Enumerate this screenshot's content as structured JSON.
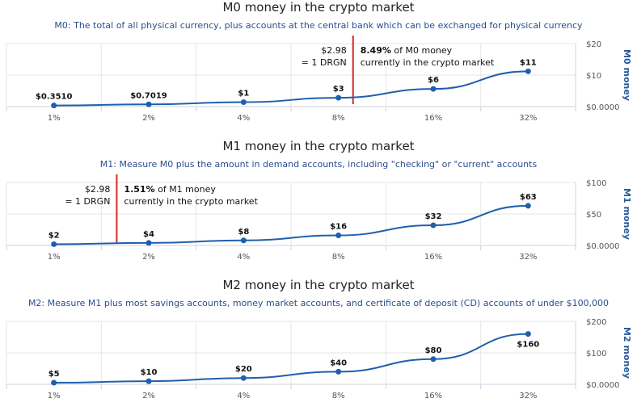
{
  "chart_data": [
    {
      "type": "line",
      "title": "M0 money in the crypto market",
      "subtitle": "M0: The total of all physical currency, plus accounts at the central bank which can be exchanged for physical currency",
      "ylabel": "M0 money",
      "categories": [
        "1%",
        "2%",
        "4%",
        "8%",
        "16%",
        "32%"
      ],
      "values": [
        0.351,
        0.7019,
        1.4,
        2.8,
        5.6,
        11.2
      ],
      "data_labels": [
        "$0.3510",
        "$0.7019",
        "$1",
        "$3",
        "$6",
        "$11"
      ],
      "y_ticks": [
        "$0.0000",
        "$10",
        "$20"
      ],
      "y_tick_values": [
        0,
        10,
        20
      ],
      "ylim": [
        0,
        20
      ],
      "marker": {
        "category_position": 3.49,
        "text_left_1": "$2.98",
        "text_left_2": "= 1 DRGN",
        "text_right_bold": "8.49%",
        "text_right_1": " of M0 money",
        "text_right_2": "currently in the crypto market"
      },
      "line_color": "#1f5fae",
      "marker_color": "#d62728"
    },
    {
      "type": "line",
      "title": "M1 money in the crypto market",
      "subtitle": "M1: Measure M0 plus the amount in demand accounts, including \"checking\" or \"current\" accounts",
      "ylabel": "M1 money",
      "categories": [
        "1%",
        "2%",
        "4%",
        "8%",
        "16%",
        "32%"
      ],
      "values": [
        2,
        4,
        8,
        16,
        32,
        63
      ],
      "data_labels": [
        "$2",
        "$4",
        "$8",
        "$16",
        "$32",
        "$63"
      ],
      "y_ticks": [
        "$0.0000",
        "$50",
        "$100"
      ],
      "y_tick_values": [
        0,
        50,
        100
      ],
      "ylim": [
        0,
        100
      ],
      "marker": {
        "category_position": 1.51,
        "text_left_1": "$2.98",
        "text_left_2": "= 1 DRGN",
        "text_right_bold": "1.51%",
        "text_right_1": " of M1 money",
        "text_right_2": "currently in the crypto market"
      },
      "line_color": "#1f5fae",
      "marker_color": "#d62728"
    },
    {
      "type": "line",
      "title": "M2 money in the crypto market",
      "subtitle": "M2: Measure M1 plus most savings accounts, money market accounts, and certificate of deposit (CD) accounts of under $100,000",
      "ylabel": "M2 money",
      "categories": [
        "1%",
        "2%",
        "4%",
        "8%",
        "16%",
        "32%"
      ],
      "values": [
        5,
        10,
        20,
        40,
        80,
        160
      ],
      "data_labels": [
        "$5",
        "$10",
        "$20",
        "$40",
        "$80",
        "$160"
      ],
      "y_ticks": [
        "$0.0000",
        "$100",
        "$200"
      ],
      "y_tick_values": [
        0,
        100,
        200
      ],
      "ylim": [
        0,
        200
      ],
      "line_color": "#1f5fae"
    }
  ]
}
